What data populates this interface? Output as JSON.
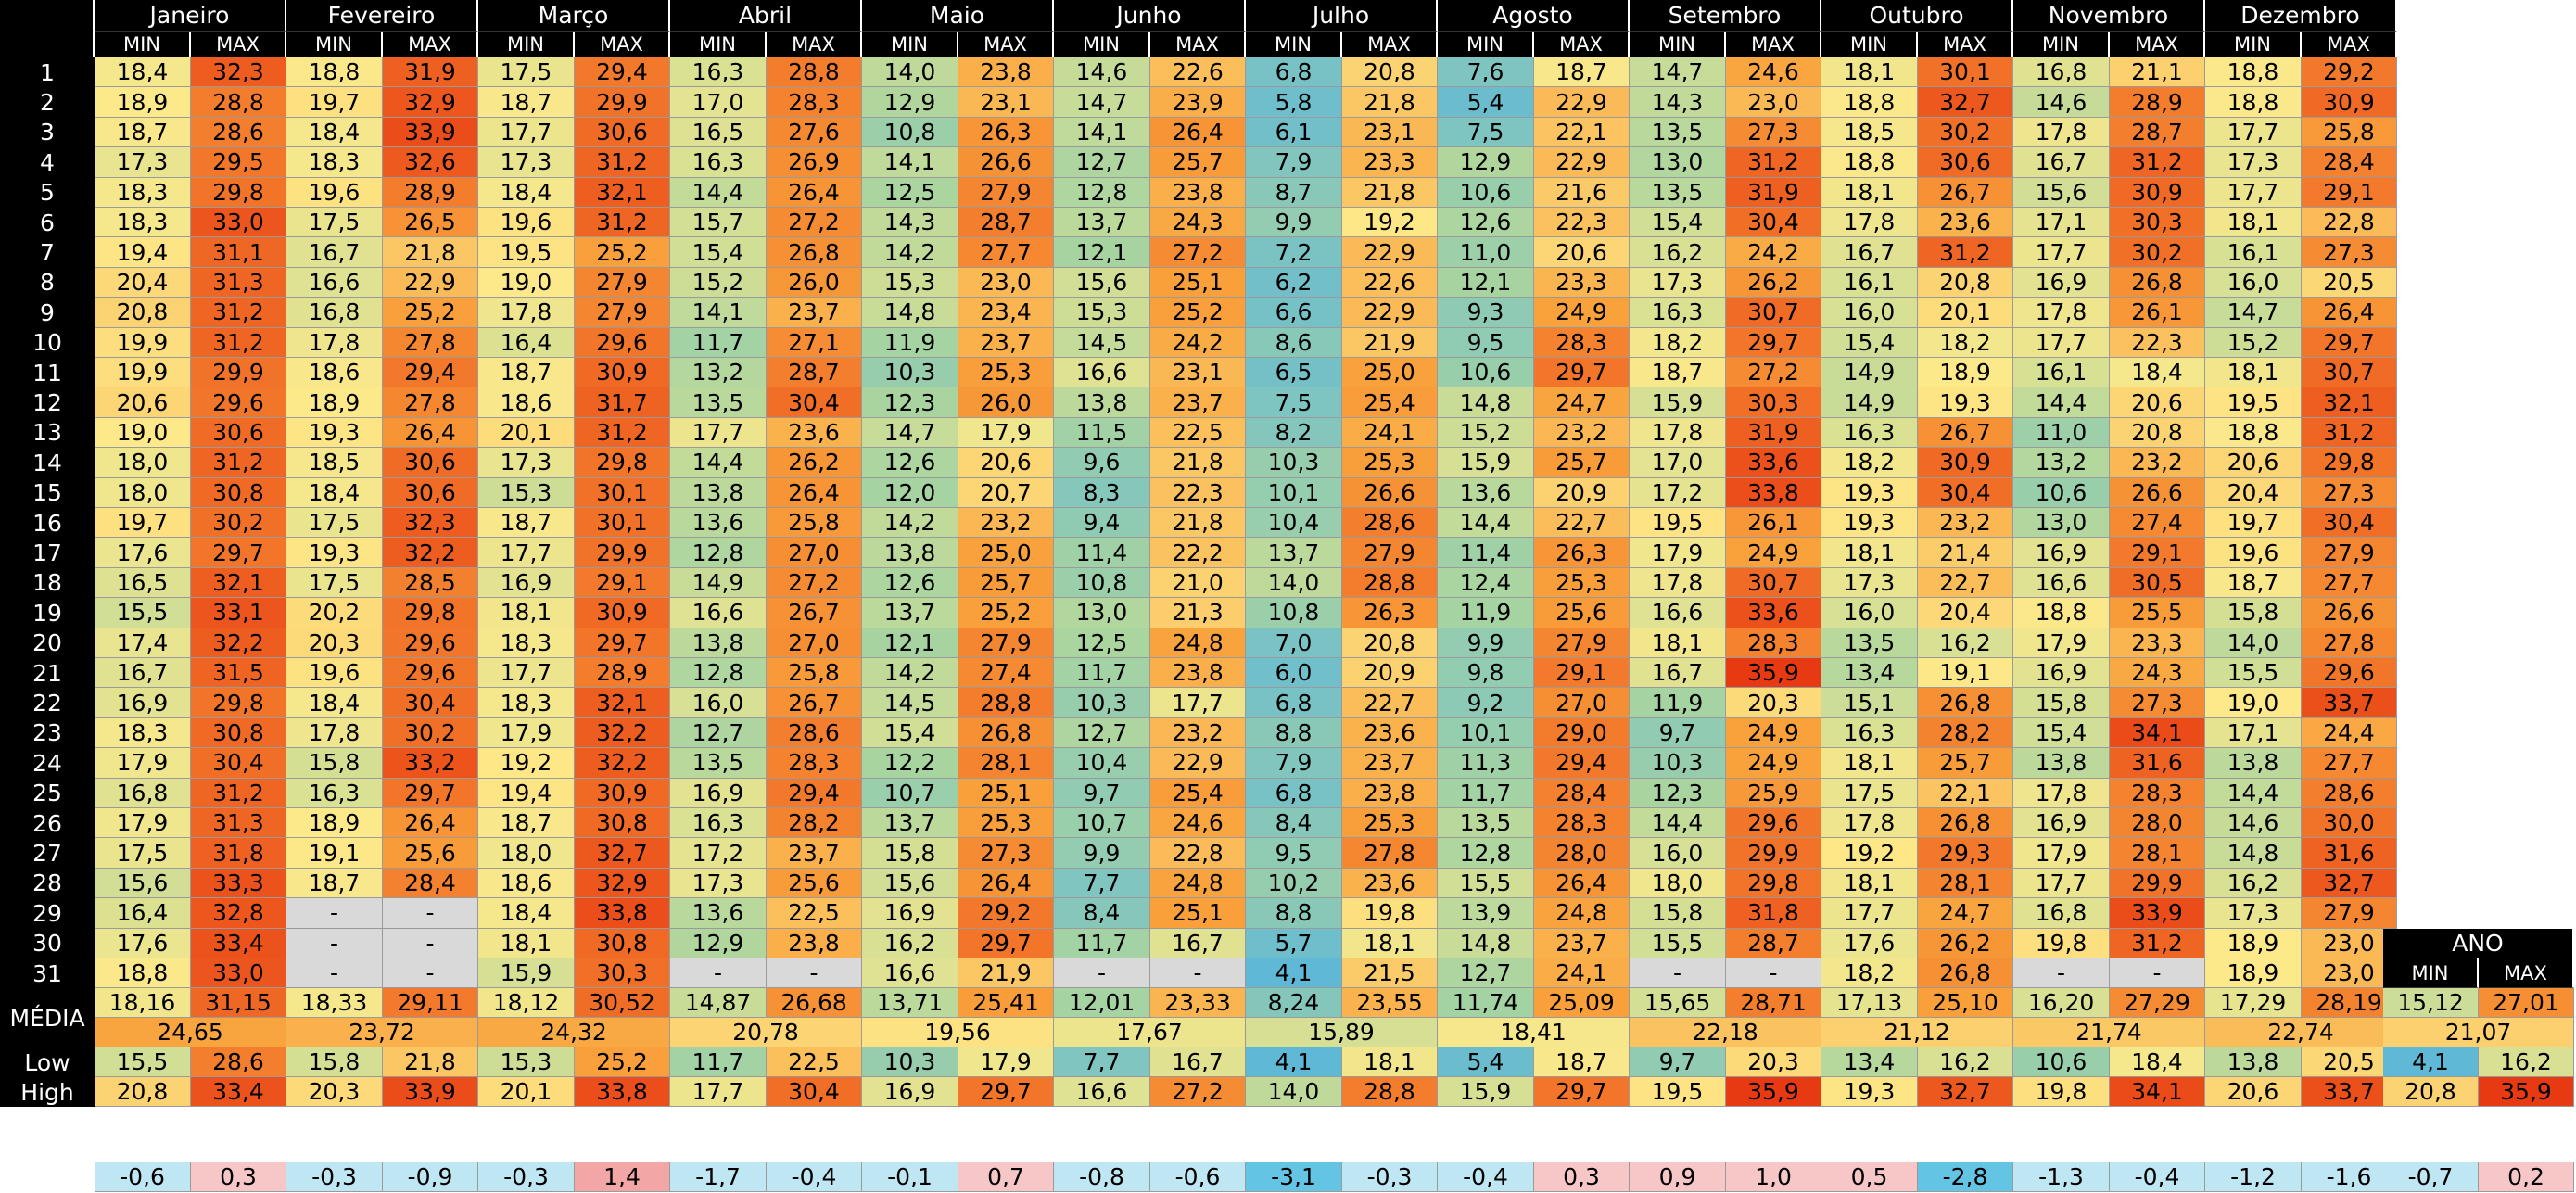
{
  "months": [
    "Janeiro",
    "Fevereiro",
    "Março",
    "Abril",
    "Maio",
    "Junho",
    "Julho",
    "Agosto",
    "Setembro",
    "Outubro",
    "Novembro",
    "Dezembro"
  ],
  "sub_labels": {
    "min": "MIN",
    "max": "MAX"
  },
  "row_labels": [
    "1",
    "2",
    "3",
    "4",
    "5",
    "6",
    "7",
    "8",
    "9",
    "10",
    "11",
    "12",
    "13",
    "14",
    "15",
    "16",
    "17",
    "18",
    "19",
    "20",
    "21",
    "22",
    "23",
    "24",
    "25",
    "26",
    "27",
    "28",
    "29",
    "30",
    "31"
  ],
  "rows": [
    [
      "18,4",
      "32,3",
      "18,8",
      "31,9",
      "17,5",
      "29,4",
      "16,3",
      "28,8",
      "14,0",
      "23,8",
      "14,6",
      "22,6",
      "6,8",
      "20,8",
      "7,6",
      "18,7",
      "14,7",
      "24,6",
      "18,1",
      "30,1",
      "16,8",
      "21,1",
      "18,8",
      "29,2"
    ],
    [
      "18,9",
      "28,8",
      "19,7",
      "32,9",
      "18,7",
      "29,9",
      "17,0",
      "28,3",
      "12,9",
      "23,1",
      "14,7",
      "23,9",
      "5,8",
      "21,8",
      "5,4",
      "22,9",
      "14,3",
      "23,0",
      "18,8",
      "32,7",
      "14,6",
      "28,9",
      "18,8",
      "30,9"
    ],
    [
      "18,7",
      "28,6",
      "18,4",
      "33,9",
      "17,7",
      "30,6",
      "16,5",
      "27,6",
      "10,8",
      "26,3",
      "14,1",
      "26,4",
      "6,1",
      "23,1",
      "7,5",
      "22,1",
      "13,5",
      "27,3",
      "18,5",
      "30,2",
      "17,8",
      "28,7",
      "17,7",
      "25,8"
    ],
    [
      "17,3",
      "29,5",
      "18,3",
      "32,6",
      "17,3",
      "31,2",
      "16,3",
      "26,9",
      "14,1",
      "26,6",
      "12,7",
      "25,7",
      "7,9",
      "23,3",
      "12,9",
      "22,9",
      "13,0",
      "31,2",
      "18,8",
      "30,6",
      "16,7",
      "31,2",
      "17,3",
      "28,4"
    ],
    [
      "18,3",
      "29,8",
      "19,6",
      "28,9",
      "18,4",
      "32,1",
      "14,4",
      "26,4",
      "12,5",
      "27,9",
      "12,8",
      "23,8",
      "8,7",
      "21,8",
      "10,6",
      "21,6",
      "13,5",
      "31,9",
      "18,1",
      "26,7",
      "15,6",
      "30,9",
      "17,7",
      "29,1"
    ],
    [
      "18,3",
      "33,0",
      "17,5",
      "26,5",
      "19,6",
      "31,2",
      "15,7",
      "27,2",
      "14,3",
      "28,7",
      "13,7",
      "24,3",
      "9,9",
      "19,2",
      "12,6",
      "22,3",
      "15,4",
      "30,4",
      "17,8",
      "23,6",
      "17,1",
      "30,3",
      "18,1",
      "22,8"
    ],
    [
      "19,4",
      "31,1",
      "16,7",
      "21,8",
      "19,5",
      "25,2",
      "15,4",
      "26,8",
      "14,2",
      "27,7",
      "12,1",
      "27,2",
      "7,2",
      "22,9",
      "11,0",
      "20,6",
      "16,2",
      "24,2",
      "16,7",
      "31,2",
      "17,7",
      "30,2",
      "16,1",
      "27,3"
    ],
    [
      "20,4",
      "31,3",
      "16,6",
      "22,9",
      "19,0",
      "27,9",
      "15,2",
      "26,0",
      "15,3",
      "23,0",
      "15,6",
      "25,1",
      "6,2",
      "22,6",
      "12,1",
      "23,3",
      "17,3",
      "26,2",
      "16,1",
      "20,8",
      "16,9",
      "26,8",
      "16,0",
      "20,5"
    ],
    [
      "20,8",
      "31,2",
      "16,8",
      "25,2",
      "17,8",
      "27,9",
      "14,1",
      "23,7",
      "14,8",
      "23,4",
      "15,3",
      "25,2",
      "6,6",
      "22,9",
      "9,3",
      "24,9",
      "16,3",
      "30,7",
      "16,0",
      "20,1",
      "17,8",
      "26,1",
      "14,7",
      "26,4"
    ],
    [
      "19,9",
      "31,2",
      "17,8",
      "27,8",
      "16,4",
      "29,6",
      "11,7",
      "27,1",
      "11,9",
      "23,7",
      "14,5",
      "24,2",
      "8,6",
      "21,9",
      "9,5",
      "28,3",
      "18,2",
      "29,7",
      "15,4",
      "18,2",
      "17,7",
      "22,3",
      "15,2",
      "29,7"
    ],
    [
      "19,9",
      "29,9",
      "18,6",
      "29,4",
      "18,7",
      "30,9",
      "13,2",
      "28,7",
      "10,3",
      "25,3",
      "16,6",
      "23,1",
      "6,5",
      "25,0",
      "10,6",
      "29,7",
      "18,7",
      "27,2",
      "14,9",
      "18,9",
      "16,1",
      "18,4",
      "18,1",
      "30,7"
    ],
    [
      "20,6",
      "29,6",
      "18,9",
      "27,8",
      "18,6",
      "31,7",
      "13,5",
      "30,4",
      "12,3",
      "26,0",
      "13,8",
      "23,7",
      "7,5",
      "25,4",
      "14,8",
      "24,7",
      "15,9",
      "30,3",
      "14,9",
      "19,3",
      "14,4",
      "20,6",
      "19,5",
      "32,1"
    ],
    [
      "19,0",
      "30,6",
      "19,3",
      "26,4",
      "20,1",
      "31,2",
      "17,7",
      "23,6",
      "14,7",
      "17,9",
      "11,5",
      "22,5",
      "8,2",
      "24,1",
      "15,2",
      "23,2",
      "17,8",
      "31,9",
      "16,3",
      "26,7",
      "11,0",
      "20,8",
      "18,8",
      "31,2"
    ],
    [
      "18,0",
      "31,2",
      "18,5",
      "30,6",
      "17,3",
      "29,8",
      "14,4",
      "26,2",
      "12,6",
      "20,6",
      "9,6",
      "21,8",
      "10,3",
      "25,3",
      "15,9",
      "25,7",
      "17,0",
      "33,6",
      "18,2",
      "30,9",
      "13,2",
      "23,2",
      "20,6",
      "29,8"
    ],
    [
      "18,0",
      "30,8",
      "18,4",
      "30,6",
      "15,3",
      "30,1",
      "13,8",
      "26,4",
      "12,0",
      "20,7",
      "8,3",
      "22,3",
      "10,1",
      "26,6",
      "13,6",
      "20,9",
      "17,2",
      "33,8",
      "19,3",
      "30,4",
      "10,6",
      "26,6",
      "20,4",
      "27,3"
    ],
    [
      "19,7",
      "30,2",
      "17,5",
      "32,3",
      "18,7",
      "30,1",
      "13,6",
      "25,8",
      "14,2",
      "23,2",
      "9,4",
      "21,8",
      "10,4",
      "28,6",
      "14,4",
      "22,7",
      "19,5",
      "26,1",
      "19,3",
      "23,2",
      "13,0",
      "27,4",
      "19,7",
      "30,4"
    ],
    [
      "17,6",
      "29,7",
      "19,3",
      "32,2",
      "17,7",
      "29,9",
      "12,8",
      "27,0",
      "13,8",
      "25,0",
      "11,4",
      "22,2",
      "13,7",
      "27,9",
      "11,4",
      "26,3",
      "17,9",
      "24,9",
      "18,1",
      "21,4",
      "16,9",
      "29,1",
      "19,6",
      "27,9"
    ],
    [
      "16,5",
      "32,1",
      "17,5",
      "28,5",
      "16,9",
      "29,1",
      "14,9",
      "27,2",
      "12,6",
      "25,7",
      "10,8",
      "21,0",
      "14,0",
      "28,8",
      "12,4",
      "25,3",
      "17,8",
      "30,7",
      "17,3",
      "22,7",
      "16,6",
      "30,5",
      "18,7",
      "27,7"
    ],
    [
      "15,5",
      "33,1",
      "20,2",
      "29,8",
      "18,1",
      "30,9",
      "16,6",
      "26,7",
      "13,7",
      "25,2",
      "13,0",
      "21,3",
      "10,8",
      "26,3",
      "11,9",
      "25,6",
      "16,6",
      "33,6",
      "16,0",
      "20,4",
      "18,8",
      "25,5",
      "15,8",
      "26,6"
    ],
    [
      "17,4",
      "32,2",
      "20,3",
      "29,6",
      "18,3",
      "29,7",
      "13,8",
      "27,0",
      "12,1",
      "27,9",
      "12,5",
      "24,8",
      "7,0",
      "20,8",
      "9,9",
      "27,9",
      "18,1",
      "28,3",
      "13,5",
      "16,2",
      "17,9",
      "23,3",
      "14,0",
      "27,8"
    ],
    [
      "16,7",
      "31,5",
      "19,6",
      "29,6",
      "17,7",
      "28,9",
      "12,8",
      "25,8",
      "14,2",
      "27,4",
      "11,7",
      "23,8",
      "6,0",
      "20,9",
      "9,8",
      "29,1",
      "16,7",
      "35,9",
      "13,4",
      "19,1",
      "16,9",
      "24,3",
      "15,5",
      "29,6"
    ],
    [
      "16,9",
      "29,8",
      "18,4",
      "30,4",
      "18,3",
      "32,1",
      "16,0",
      "26,7",
      "14,5",
      "28,8",
      "10,3",
      "17,7",
      "6,8",
      "22,7",
      "9,2",
      "27,0",
      "11,9",
      "20,3",
      "15,1",
      "26,8",
      "15,8",
      "27,3",
      "19,0",
      "33,7"
    ],
    [
      "18,3",
      "30,8",
      "17,8",
      "30,2",
      "17,9",
      "32,2",
      "12,7",
      "28,6",
      "15,4",
      "26,8",
      "12,7",
      "23,2",
      "8,8",
      "23,6",
      "10,1",
      "29,0",
      "9,7",
      "24,9",
      "16,3",
      "28,2",
      "15,4",
      "34,1",
      "17,1",
      "24,4"
    ],
    [
      "17,9",
      "30,4",
      "15,8",
      "33,2",
      "19,2",
      "32,2",
      "13,5",
      "28,3",
      "12,2",
      "28,1",
      "10,4",
      "22,9",
      "7,9",
      "23,7",
      "11,3",
      "29,4",
      "10,3",
      "24,9",
      "18,1",
      "25,7",
      "13,8",
      "31,6",
      "13,8",
      "27,7"
    ],
    [
      "16,8",
      "31,2",
      "16,3",
      "29,7",
      "19,4",
      "30,9",
      "16,9",
      "29,4",
      "10,7",
      "25,1",
      "9,7",
      "25,4",
      "6,8",
      "23,8",
      "11,7",
      "28,4",
      "12,3",
      "25,9",
      "17,5",
      "22,1",
      "17,8",
      "28,3",
      "14,4",
      "28,6"
    ],
    [
      "17,9",
      "31,3",
      "18,9",
      "26,4",
      "18,7",
      "30,8",
      "16,3",
      "28,2",
      "13,7",
      "25,3",
      "10,7",
      "24,6",
      "8,4",
      "25,3",
      "13,5",
      "28,3",
      "14,4",
      "29,6",
      "17,8",
      "26,8",
      "16,9",
      "28,0",
      "14,6",
      "30,0"
    ],
    [
      "17,5",
      "31,8",
      "19,1",
      "25,6",
      "18,0",
      "32,7",
      "17,2",
      "23,7",
      "15,8",
      "27,3",
      "9,9",
      "22,8",
      "9,5",
      "27,8",
      "12,8",
      "28,0",
      "16,0",
      "29,9",
      "19,2",
      "29,3",
      "17,9",
      "28,1",
      "14,8",
      "31,6"
    ],
    [
      "15,6",
      "33,3",
      "18,7",
      "28,4",
      "18,6",
      "32,9",
      "17,3",
      "25,6",
      "15,6",
      "26,4",
      "7,7",
      "24,8",
      "10,2",
      "23,6",
      "15,5",
      "26,4",
      "18,0",
      "29,8",
      "18,1",
      "28,1",
      "17,7",
      "29,9",
      "16,2",
      "32,7"
    ],
    [
      "16,4",
      "32,8",
      "-",
      "-",
      "18,4",
      "33,8",
      "13,6",
      "22,5",
      "16,9",
      "29,2",
      "8,4",
      "25,1",
      "8,8",
      "19,8",
      "13,9",
      "24,8",
      "15,8",
      "31,8",
      "17,7",
      "24,7",
      "16,8",
      "33,9",
      "17,3",
      "27,9"
    ],
    [
      "17,6",
      "33,4",
      "-",
      "-",
      "18,1",
      "30,8",
      "12,9",
      "23,8",
      "16,2",
      "29,7",
      "11,7",
      "16,7",
      "5,7",
      "18,1",
      "14,8",
      "23,7",
      "15,5",
      "28,7",
      "17,6",
      "26,2",
      "19,8",
      "31,2",
      "18,9",
      "23,0"
    ],
    [
      "18,8",
      "33,0",
      "-",
      "-",
      "15,9",
      "30,3",
      "-",
      "-",
      "16,6",
      "21,9",
      "-",
      "-",
      "4,1",
      "21,5",
      "12,7",
      "24,1",
      "-",
      "-",
      "18,2",
      "26,8",
      "-",
      "-",
      "18,9",
      "23,0"
    ]
  ],
  "media": {
    "label": "MÉDIA",
    "values": [
      "18,16",
      "31,15",
      "18,33",
      "29,11",
      "18,12",
      "30,52",
      "14,87",
      "26,68",
      "13,71",
      "25,41",
      "12,01",
      "23,33",
      "8,24",
      "23,55",
      "11,74",
      "25,09",
      "15,65",
      "28,71",
      "17,13",
      "25,10",
      "16,20",
      "27,29",
      "17,29",
      "28,19"
    ],
    "combined": [
      "24,65",
      "23,72",
      "24,32",
      "20,78",
      "19,56",
      "17,67",
      "15,89",
      "18,41",
      "22,18",
      "21,12",
      "21,74",
      "22,74"
    ]
  },
  "low": {
    "label": "Low",
    "values": [
      "15,5",
      "28,6",
      "15,8",
      "21,8",
      "15,3",
      "25,2",
      "11,7",
      "22,5",
      "10,3",
      "17,9",
      "7,7",
      "16,7",
      "4,1",
      "18,1",
      "5,4",
      "18,7",
      "9,7",
      "20,3",
      "13,4",
      "16,2",
      "10,6",
      "18,4",
      "13,8",
      "20,5"
    ]
  },
  "high": {
    "label": "High",
    "values": [
      "20,8",
      "33,4",
      "20,3",
      "33,9",
      "20,1",
      "33,8",
      "17,7",
      "30,4",
      "16,9",
      "29,7",
      "16,6",
      "27,2",
      "14,0",
      "28,8",
      "15,9",
      "29,7",
      "19,5",
      "35,9",
      "19,3",
      "32,7",
      "19,8",
      "34,1",
      "20,6",
      "33,7"
    ]
  },
  "ano": {
    "title": "ANO",
    "min_label": "MIN",
    "max_label": "MAX",
    "media": [
      "15,12",
      "27,01"
    ],
    "combined": "21,07",
    "low": [
      "4,1",
      "16,2"
    ],
    "high": [
      "20,8",
      "35,9"
    ],
    "diff": [
      "-0,7",
      "0,2"
    ]
  },
  "diff": [
    "-0,6",
    "0,3",
    "-0,3",
    "-0,9",
    "-0,3",
    "1,4",
    "-1,7",
    "-0,4",
    "-0,1",
    "0,7",
    "-0,8",
    "-0,6",
    "-3,1",
    "-0,3",
    "-0,4",
    "0,3",
    "0,9",
    "1,0",
    "0,5",
    "-2,8",
    "-1,3",
    "-0,4",
    "-1,2",
    "-1,6"
  ],
  "color_scale": {
    "cold": "#5fb8d8",
    "mid": "#fde98a",
    "hot": "#e83a12",
    "na": "#d9d9d9",
    "diff_neg": "#bfe6f3",
    "diff_pos": "#f7c7c7"
  }
}
